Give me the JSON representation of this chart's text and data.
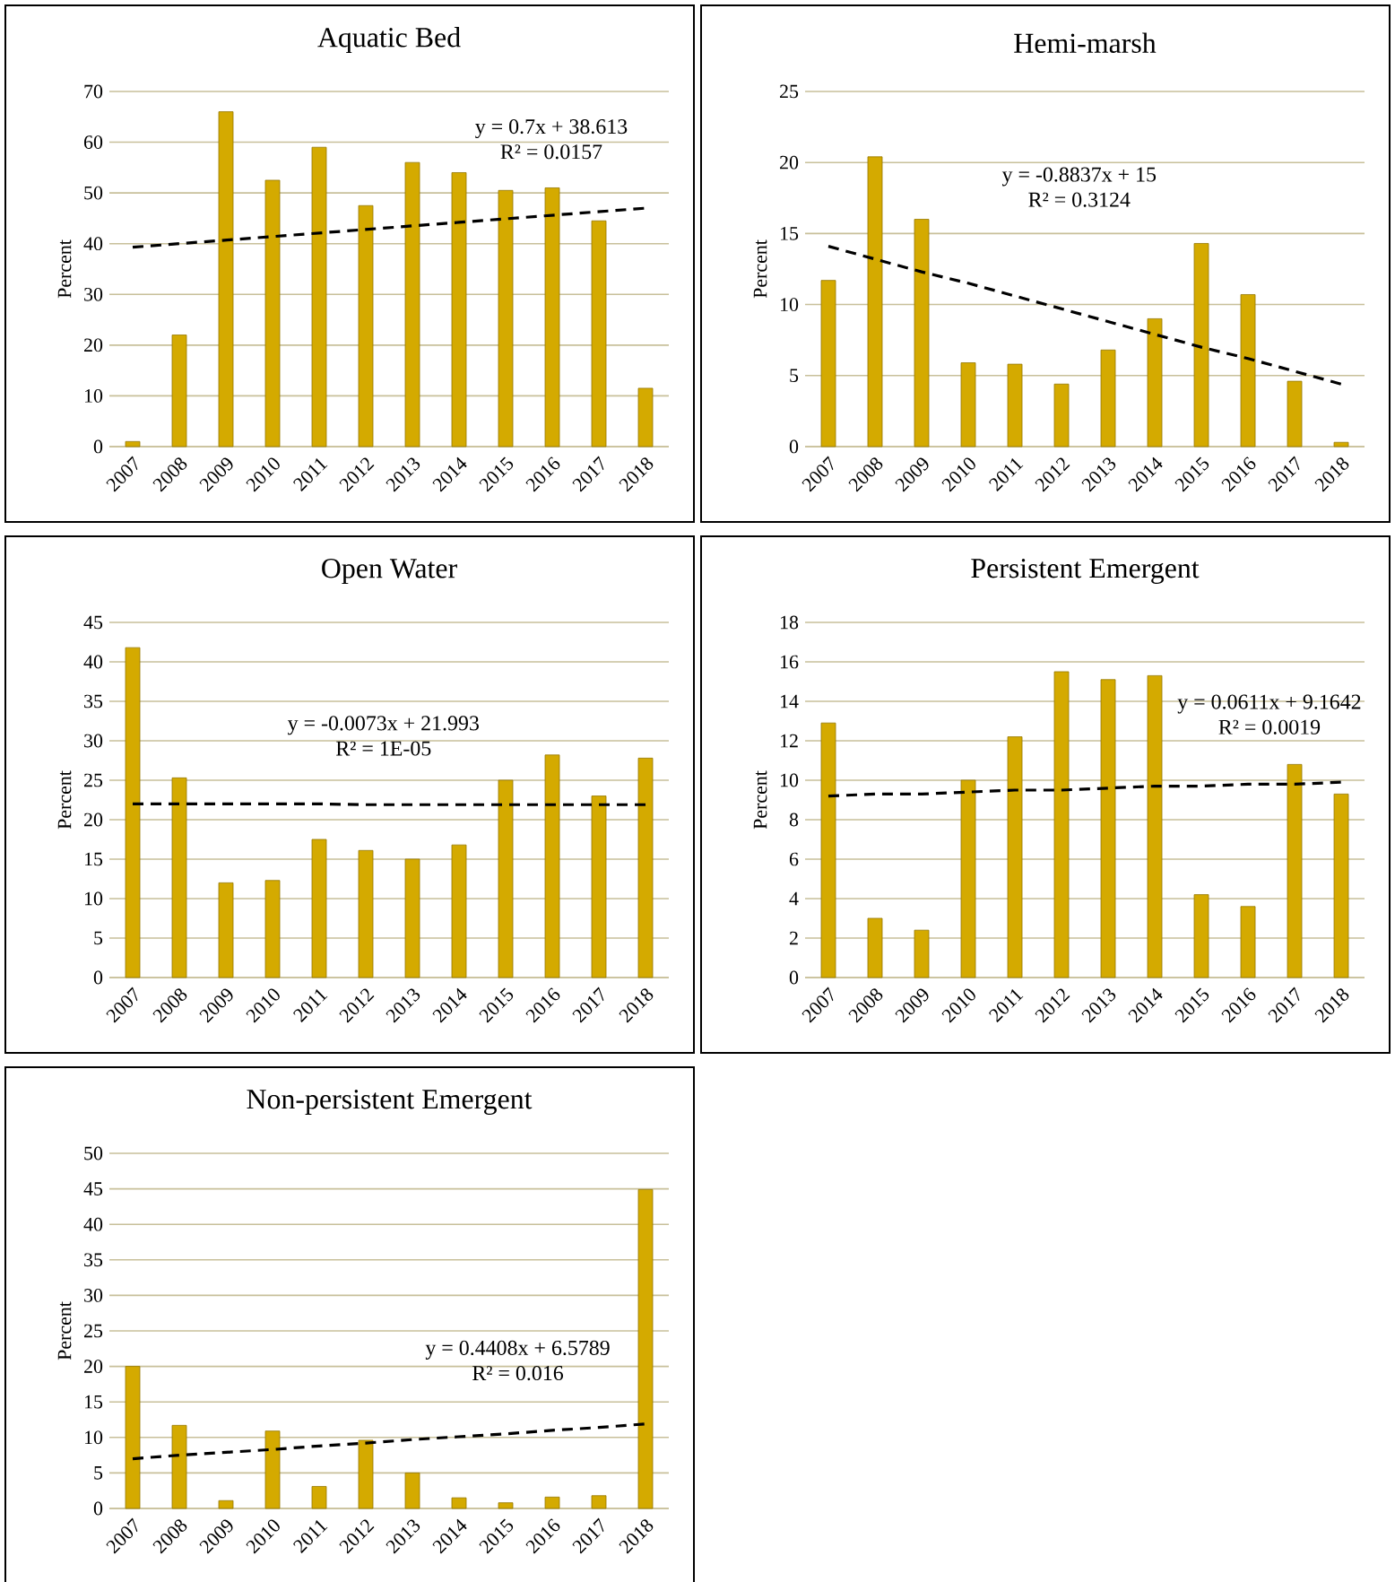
{
  "chart_data": [
    {
      "type": "bar",
      "title": "Aquatic Bed",
      "ylabel": "Percent",
      "categories": [
        "2007",
        "2008",
        "2009",
        "2010",
        "2011",
        "2012",
        "2013",
        "2014",
        "2015",
        "2016",
        "2017",
        "2018"
      ],
      "ylim": [
        0,
        70
      ],
      "yticks": [
        0,
        10,
        20,
        30,
        40,
        50,
        60,
        70
      ],
      "grid": "y",
      "series": [
        {
          "color": "#d4aa00",
          "values": [
            1,
            22,
            66,
            52.5,
            59,
            47.5,
            56,
            54,
            50.5,
            51,
            44.5,
            11.5
          ]
        },
        {
          "type": "line",
          "color": "#000000",
          "line_style": "dashed",
          "values": [
            39.3,
            40.0,
            40.7,
            41.4,
            42.1,
            42.8,
            43.5,
            44.2,
            44.9,
            45.6,
            46.3,
            47.0
          ]
        }
      ],
      "annotations": [
        "y = 0.7x + 38.613",
        "R² = 0.0157"
      ]
    },
    {
      "type": "bar",
      "title": "Hemi-marsh",
      "ylabel": "Percent",
      "categories": [
        "2007",
        "2008",
        "2009",
        "2010",
        "2011",
        "2012",
        "2013",
        "2014",
        "2015",
        "2016",
        "2017",
        "2018"
      ],
      "ylim": [
        0,
        25
      ],
      "yticks": [
        0,
        5,
        10,
        15,
        20,
        25
      ],
      "grid": "y",
      "series": [
        {
          "color": "#d4aa00",
          "values": [
            11.7,
            20.4,
            16.0,
            5.9,
            5.8,
            4.4,
            6.8,
            9.0,
            14.3,
            10.7,
            4.6,
            0.3
          ]
        },
        {
          "type": "line",
          "color": "#000000",
          "line_style": "dashed",
          "values": [
            14.1,
            13.2,
            12.3,
            11.5,
            10.6,
            9.7,
            8.8,
            7.9,
            7.0,
            6.2,
            5.3,
            4.4
          ]
        }
      ],
      "annotations": [
        "y = -0.8837x + 15",
        "R² = 0.3124"
      ]
    },
    {
      "type": "bar",
      "title": "Open Water",
      "ylabel": "Percent",
      "categories": [
        "2007",
        "2008",
        "2009",
        "2010",
        "2011",
        "2012",
        "2013",
        "2014",
        "2015",
        "2016",
        "2017",
        "2018"
      ],
      "ylim": [
        0,
        45
      ],
      "yticks": [
        0,
        5,
        10,
        15,
        20,
        25,
        30,
        35,
        40,
        45
      ],
      "grid": "y",
      "series": [
        {
          "color": "#d4aa00",
          "values": [
            41.8,
            25.3,
            12.0,
            12.3,
            17.5,
            16.1,
            15.0,
            16.8,
            25.0,
            28.2,
            23.0,
            27.8
          ]
        },
        {
          "type": "line",
          "color": "#000000",
          "line_style": "dashed",
          "values": [
            22.0,
            22.0,
            22.0,
            22.0,
            22.0,
            21.9,
            21.9,
            21.9,
            21.9,
            21.9,
            21.9,
            21.9
          ]
        }
      ],
      "annotations": [
        "y = -0.0073x + 21.993",
        "R² = 1E-05"
      ]
    },
    {
      "type": "bar",
      "title": "Persistent Emergent",
      "ylabel": "Percent",
      "categories": [
        "2007",
        "2008",
        "2009",
        "2010",
        "2011",
        "2012",
        "2013",
        "2014",
        "2015",
        "2016",
        "2017",
        "2018"
      ],
      "ylim": [
        0,
        18
      ],
      "yticks": [
        0,
        2,
        4,
        6,
        8,
        10,
        12,
        14,
        16,
        18
      ],
      "grid": "y",
      "series": [
        {
          "color": "#d4aa00",
          "values": [
            12.9,
            3.0,
            2.4,
            10.0,
            12.2,
            15.5,
            15.1,
            15.3,
            4.2,
            3.6,
            10.8,
            9.3
          ]
        },
        {
          "type": "line",
          "color": "#000000",
          "line_style": "dashed",
          "values": [
            9.2,
            9.3,
            9.3,
            9.4,
            9.5,
            9.5,
            9.6,
            9.7,
            9.7,
            9.8,
            9.8,
            9.9
          ]
        }
      ],
      "annotations": [
        "y = 0.0611x + 9.1642",
        "R² = 0.0019"
      ]
    },
    {
      "type": "bar",
      "title": "Non-persistent Emergent",
      "ylabel": "Percent",
      "categories": [
        "2007",
        "2008",
        "2009",
        "2010",
        "2011",
        "2012",
        "2013",
        "2014",
        "2015",
        "2016",
        "2017",
        "2018"
      ],
      "ylim": [
        0,
        50
      ],
      "yticks": [
        0,
        5,
        10,
        15,
        20,
        25,
        30,
        35,
        40,
        45,
        50
      ],
      "grid": "y",
      "series": [
        {
          "color": "#d4aa00",
          "values": [
            20.0,
            11.7,
            1.1,
            10.9,
            3.1,
            9.6,
            5.0,
            1.5,
            0.8,
            1.6,
            1.8,
            44.9
          ]
        },
        {
          "type": "line",
          "color": "#000000",
          "line_style": "dashed",
          "values": [
            7.0,
            7.5,
            7.9,
            8.3,
            8.8,
            9.2,
            9.7,
            10.1,
            10.5,
            11.0,
            11.4,
            11.9
          ]
        }
      ],
      "annotations": [
        "y = 0.4408x + 6.5789",
        "R² = 0.016"
      ]
    }
  ]
}
